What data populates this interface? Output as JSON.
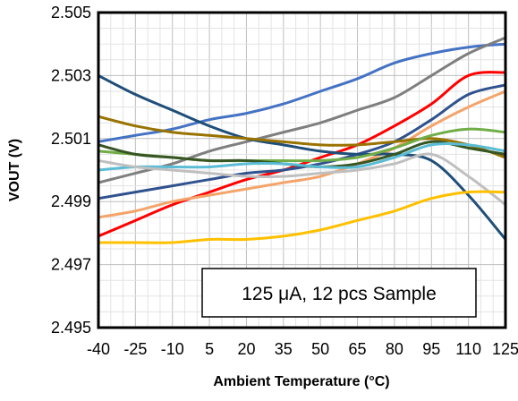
{
  "chart_data": {
    "type": "line",
    "title": "",
    "xlabel": "Ambient Temperature (°C)",
    "ylabel": "VOUT (V)",
    "xlim": [
      -40,
      125
    ],
    "ylim": [
      2.495,
      2.505
    ],
    "x_ticks": [
      -40,
      -25,
      -10,
      5,
      20,
      35,
      50,
      65,
      80,
      95,
      110,
      125
    ],
    "x_tick_labels": [
      "-40",
      "-25",
      "-10",
      "5",
      "20",
      "35",
      "50",
      "65",
      "80",
      "95",
      "110",
      "125"
    ],
    "y_ticks": [
      2.495,
      2.497,
      2.499,
      2.501,
      2.503,
      2.505
    ],
    "y_tick_labels": [
      "2.495",
      "2.497",
      "2.499",
      "2.501",
      "2.503",
      "2.505"
    ],
    "grid": true,
    "annotation": "125 μA, 12 pcs Sample",
    "series": [
      {
        "color": "#4472C4",
        "x": [
          -40,
          -25,
          -10,
          5,
          20,
          35,
          50,
          65,
          80,
          95,
          110,
          125
        ],
        "y": [
          2.5009,
          2.5011,
          2.5013,
          2.5016,
          2.5018,
          2.5021,
          2.5025,
          2.5029,
          2.5034,
          2.5037,
          2.5039,
          2.504
        ]
      },
      {
        "color": "#7F7F7F",
        "x": [
          -40,
          -25,
          -10,
          5,
          20,
          35,
          50,
          65,
          80,
          95,
          110,
          125
        ],
        "y": [
          2.4996,
          2.4999,
          2.5002,
          2.5006,
          2.5009,
          2.5012,
          2.5015,
          2.5019,
          2.5023,
          2.503,
          2.5037,
          2.5042
        ]
      },
      {
        "color": "#FF0000",
        "x": [
          -40,
          -25,
          -10,
          5,
          20,
          35,
          50,
          65,
          80,
          95,
          110,
          125
        ],
        "y": [
          2.4979,
          2.4984,
          2.4989,
          2.4993,
          2.4997,
          2.5,
          2.5004,
          2.5008,
          2.5014,
          2.5021,
          2.503,
          2.5031
        ]
      },
      {
        "color": "#2F528F",
        "x": [
          -40,
          -25,
          -10,
          5,
          20,
          35,
          50,
          65,
          80,
          95,
          110,
          125
        ],
        "y": [
          2.4991,
          2.4993,
          2.4995,
          2.4997,
          2.4999,
          2.5,
          2.5002,
          2.5005,
          2.5009,
          2.5016,
          2.5024,
          2.5027
        ]
      },
      {
        "color": "#F4A46A",
        "x": [
          -40,
          -25,
          -10,
          5,
          20,
          35,
          50,
          65,
          80,
          95,
          110,
          125
        ],
        "y": [
          2.4985,
          2.4987,
          2.499,
          2.4992,
          2.4994,
          2.4996,
          2.4998,
          2.5002,
          2.5007,
          2.5014,
          2.502,
          2.5025
        ]
      },
      {
        "color": "#1F4E79",
        "x": [
          -40,
          -25,
          -10,
          5,
          20,
          35,
          50,
          65,
          80,
          95,
          110,
          125
        ],
        "y": [
          2.503,
          2.5024,
          2.5019,
          2.5014,
          2.501,
          2.5008,
          2.5006,
          2.5005,
          2.5005,
          2.5003,
          2.4992,
          2.4978
        ]
      },
      {
        "color": "#997300",
        "x": [
          -40,
          -25,
          -10,
          5,
          20,
          35,
          50,
          65,
          80,
          95,
          110,
          125
        ],
        "y": [
          2.5017,
          2.5014,
          2.5012,
          2.5011,
          2.501,
          2.5009,
          2.5008,
          2.5008,
          2.5009,
          2.501,
          2.5008,
          2.5004
        ]
      },
      {
        "color": "#70AD47",
        "x": [
          -40,
          -25,
          -10,
          5,
          20,
          35,
          50,
          65,
          80,
          95,
          110,
          125
        ],
        "y": [
          2.5006,
          2.5005,
          2.5004,
          2.5003,
          2.5003,
          2.5003,
          2.5003,
          2.5004,
          2.5007,
          2.5011,
          2.5013,
          2.5012
        ]
      },
      {
        "color": "#375623",
        "x": [
          -40,
          -25,
          -10,
          5,
          20,
          35,
          50,
          65,
          80,
          95,
          110,
          125
        ],
        "y": [
          2.5008,
          2.5005,
          2.5004,
          2.5003,
          2.5003,
          2.5002,
          2.5001,
          2.5002,
          2.5005,
          2.5009,
          2.5007,
          2.5005
        ]
      },
      {
        "color": "#5BBCD6",
        "x": [
          -40,
          -25,
          -10,
          5,
          20,
          35,
          50,
          65,
          80,
          95,
          110,
          125
        ],
        "y": [
          2.5,
          2.5001,
          2.5001,
          2.5001,
          2.5002,
          2.5002,
          2.5001,
          2.5001,
          2.5004,
          2.5008,
          2.5008,
          2.5006
        ]
      },
      {
        "color": "#BFBFBF",
        "x": [
          -40,
          -25,
          -10,
          5,
          20,
          35,
          50,
          65,
          80,
          95,
          110,
          125
        ],
        "y": [
          2.5003,
          2.5001,
          2.5,
          2.4999,
          2.4998,
          2.4998,
          2.4999,
          2.5,
          2.5002,
          2.5005,
          2.4998,
          2.4989
        ]
      },
      {
        "color": "#FFC000",
        "x": [
          -40,
          -25,
          -10,
          5,
          20,
          35,
          50,
          65,
          80,
          95,
          110,
          125
        ],
        "y": [
          2.4977,
          2.4977,
          2.4977,
          2.4978,
          2.4978,
          2.4979,
          2.4981,
          2.4984,
          2.4987,
          2.4991,
          2.4993,
          2.4993
        ]
      }
    ]
  }
}
